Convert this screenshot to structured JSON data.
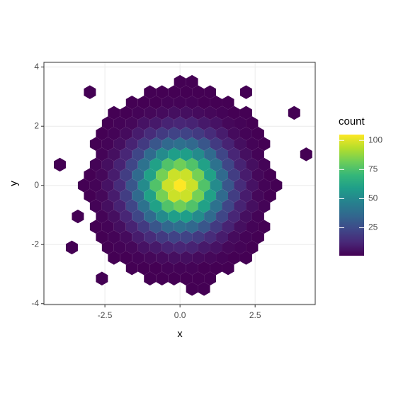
{
  "chart_data": {
    "type": "hexbin",
    "x_label": "x",
    "y_label": "y",
    "xlim": [
      -4.53,
      4.5
    ],
    "ylim": [
      -4.03,
      4.16
    ],
    "xticks": [
      -2.5,
      {
        "value": 0,
        "label": "0.0"
      },
      2.5
    ],
    "yticks": [
      -4,
      -2,
      0,
      2,
      4
    ],
    "grid": true,
    "colorbar": {
      "title": "count",
      "lim": [
        1,
        105
      ],
      "ticks": [
        25,
        50,
        75,
        100
      ],
      "colors": [
        "#440154",
        "#482878",
        "#3e4989",
        "#31688e",
        "#26828e",
        "#1f9e89",
        "#35b779",
        "#6ece58",
        "#b5de2b",
        "#fde725"
      ]
    },
    "rows": [
      {
        "y": 0,
        "x": [
          -3.2,
          -2.8,
          -2.4,
          -2.0,
          -1.6,
          -1.2,
          -0.8,
          -0.4,
          0,
          0.4,
          0.8,
          1.2,
          1.6,
          2.0,
          2.4,
          2.8,
          3.2
        ],
        "values": [
          1,
          2,
          6,
          14,
          29,
          51,
          76,
          97,
          105,
          97,
          76,
          51,
          29,
          14,
          6,
          2,
          1
        ]
      },
      {
        "y": 0.35,
        "x": [
          -3.0,
          -2.6,
          -2.2,
          -1.8,
          -1.4,
          -1.0,
          -0.6,
          -0.2,
          0.2,
          0.6,
          1.0,
          1.4,
          1.8,
          2.2,
          2.6,
          3.0
        ],
        "values": [
          1,
          3,
          9,
          20,
          37,
          60,
          83,
          97,
          97,
          83,
          60,
          37,
          20,
          9,
          3,
          1
        ]
      },
      {
        "y": -0.35,
        "x": [
          -3.0,
          -2.6,
          -2.2,
          -1.8,
          -1.4,
          -1.0,
          -0.6,
          -0.2,
          0.2,
          0.6,
          1.0,
          1.4,
          1.8,
          2.2,
          2.6,
          3.0
        ],
        "values": [
          1,
          3,
          9,
          20,
          37,
          60,
          83,
          97,
          97,
          83,
          60,
          37,
          20,
          9,
          3,
          1
        ]
      },
      {
        "y": 0.7,
        "x": [
          -2.8,
          -2.4,
          -2.0,
          -1.6,
          -1.2,
          -0.8,
          -0.4,
          0,
          0.4,
          0.8,
          1.2,
          1.6,
          2.0,
          2.4,
          2.8
        ],
        "values": [
          2,
          5,
          11,
          23,
          40,
          60,
          76,
          82,
          76,
          60,
          40,
          23,
          11,
          5,
          2
        ]
      },
      {
        "y": -0.7,
        "x": [
          -2.8,
          -2.4,
          -2.0,
          -1.6,
          -1.2,
          -0.8,
          -0.4,
          0,
          0.4,
          0.8,
          1.2,
          1.6,
          2.0,
          2.4,
          2.8
        ],
        "values": [
          2,
          5,
          11,
          23,
          40,
          60,
          76,
          82,
          76,
          60,
          40,
          23,
          11,
          5,
          2
        ]
      },
      {
        "y": 1.05,
        "x": [
          -2.6,
          -2.2,
          -1.8,
          -1.4,
          -1.0,
          -0.6,
          -0.2,
          0.2,
          0.6,
          1.0,
          1.4,
          1.8,
          2.2,
          2.6,
          4.2
        ],
        "values": [
          2,
          5,
          12,
          23,
          37,
          51,
          59,
          59,
          51,
          37,
          23,
          12,
          5,
          2,
          1
        ]
      },
      {
        "y": -1.05,
        "x": [
          -3.4,
          -2.6,
          -2.2,
          -1.8,
          -1.4,
          -1.0,
          -0.6,
          -0.2,
          0.2,
          0.6,
          1.0,
          1.4,
          1.8,
          2.2,
          2.6
        ],
        "values": [
          1,
          2,
          5,
          12,
          23,
          37,
          51,
          59,
          59,
          51,
          37,
          23,
          12,
          5,
          2
        ]
      },
      {
        "y": 1.4,
        "x": [
          -2.8,
          -2.4,
          -2.0,
          -1.6,
          -1.2,
          -0.8,
          -0.4,
          0,
          0.4,
          0.8,
          1.2,
          1.6,
          2.0,
          2.4,
          2.8
        ],
        "values": [
          1,
          2,
          5,
          11,
          19,
          29,
          36,
          39,
          36,
          29,
          19,
          11,
          5,
          2,
          1
        ]
      },
      {
        "y": -1.4,
        "x": [
          -2.8,
          -2.4,
          -2.0,
          -1.6,
          -1.2,
          -0.8,
          -0.4,
          0,
          0.4,
          0.8,
          1.2,
          1.6,
          2.0,
          2.4,
          2.8
        ],
        "values": [
          1,
          2,
          5,
          11,
          19,
          29,
          36,
          39,
          36,
          29,
          19,
          11,
          5,
          2,
          1
        ]
      },
      {
        "y": 1.75,
        "x": [
          -2.6,
          -2.2,
          -1.8,
          -1.4,
          -1.0,
          -0.6,
          -0.2,
          0.2,
          0.6,
          1.0,
          1.4,
          1.8,
          2.2,
          2.6
        ],
        "values": [
          1,
          2,
          4,
          9,
          14,
          19,
          22,
          22,
          19,
          14,
          9,
          4,
          2,
          1
        ]
      },
      {
        "y": -1.75,
        "x": [
          -2.6,
          -2.2,
          -1.8,
          -1.4,
          -1.0,
          -0.6,
          -0.2,
          0.2,
          0.6,
          1.0,
          1.4,
          1.8,
          2.2,
          2.6
        ],
        "values": [
          1,
          2,
          4,
          9,
          14,
          19,
          22,
          22,
          19,
          14,
          9,
          4,
          2,
          1
        ]
      },
      {
        "y": 2.1,
        "x": [
          -2.4,
          -2.0,
          -1.6,
          -1.2,
          -0.8,
          -0.4,
          0,
          0.4,
          0.8,
          1.2,
          1.6,
          2.0,
          2.4
        ],
        "values": [
          1,
          2,
          3,
          6,
          8,
          11,
          12,
          11,
          8,
          6,
          3,
          2,
          1
        ]
      },
      {
        "y": -2.1,
        "x": [
          -3.6,
          -2.4,
          -2.0,
          -1.6,
          -1.2,
          -0.8,
          -0.4,
          0,
          0.4,
          0.8,
          1.2,
          1.6,
          2.0,
          2.4
        ],
        "values": [
          1,
          1,
          2,
          3,
          6,
          8,
          11,
          12,
          11,
          8,
          6,
          3,
          2,
          1
        ]
      },
      {
        "y": 2.45,
        "x": [
          -2.2,
          -1.8,
          -1.4,
          -1.0,
          -0.6,
          -0.2,
          0.2,
          0.6,
          1.0,
          1.4,
          1.8,
          2.2,
          3.8
        ],
        "values": [
          1,
          1,
          2,
          3,
          4,
          5,
          5,
          4,
          3,
          2,
          1,
          1,
          1
        ]
      },
      {
        "y": -2.45,
        "x": [
          -2.2,
          -1.8,
          -1.4,
          -1.0,
          -0.6,
          -0.2,
          0.2,
          0.6,
          1.0,
          1.4,
          1.8,
          2.2
        ],
        "values": [
          1,
          1,
          2,
          3,
          4,
          5,
          5,
          4,
          3,
          2,
          1,
          1
        ]
      },
      {
        "y": 2.8,
        "x": [
          -1.6,
          -1.2,
          -0.8,
          -0.4,
          0,
          0.4,
          0.8,
          1.2,
          1.6
        ],
        "values": [
          1,
          1,
          1,
          2,
          2,
          2,
          1,
          1,
          1
        ]
      },
      {
        "y": -2.8,
        "x": [
          -1.6,
          -1.2,
          -0.8,
          -0.4,
          0,
          0.4,
          0.8,
          1.2,
          1.6
        ],
        "values": [
          1,
          1,
          1,
          2,
          2,
          2,
          1,
          1,
          1
        ]
      },
      {
        "y": 3.15,
        "x": [
          -3.0,
          -1.0,
          -0.6,
          -0.2,
          0.2,
          0.6,
          1.0,
          2.2
        ],
        "values": [
          1,
          1,
          1,
          1,
          1,
          1,
          1,
          1
        ]
      },
      {
        "y": -3.15,
        "x": [
          -2.6,
          -1.0,
          -0.6,
          -0.2,
          0.2,
          0.6,
          1.0
        ],
        "values": [
          1,
          1,
          1,
          1,
          1,
          1,
          1
        ]
      },
      {
        "y": 3.5,
        "x": [
          0,
          0.4
        ],
        "values": [
          1,
          1
        ]
      },
      {
        "y": -3.5,
        "x": [
          0.4,
          0.8
        ],
        "values": [
          1,
          1
        ]
      },
      {
        "y": 0.7,
        "x": [
          -4.0
        ],
        "values": [
          1
        ]
      }
    ]
  }
}
